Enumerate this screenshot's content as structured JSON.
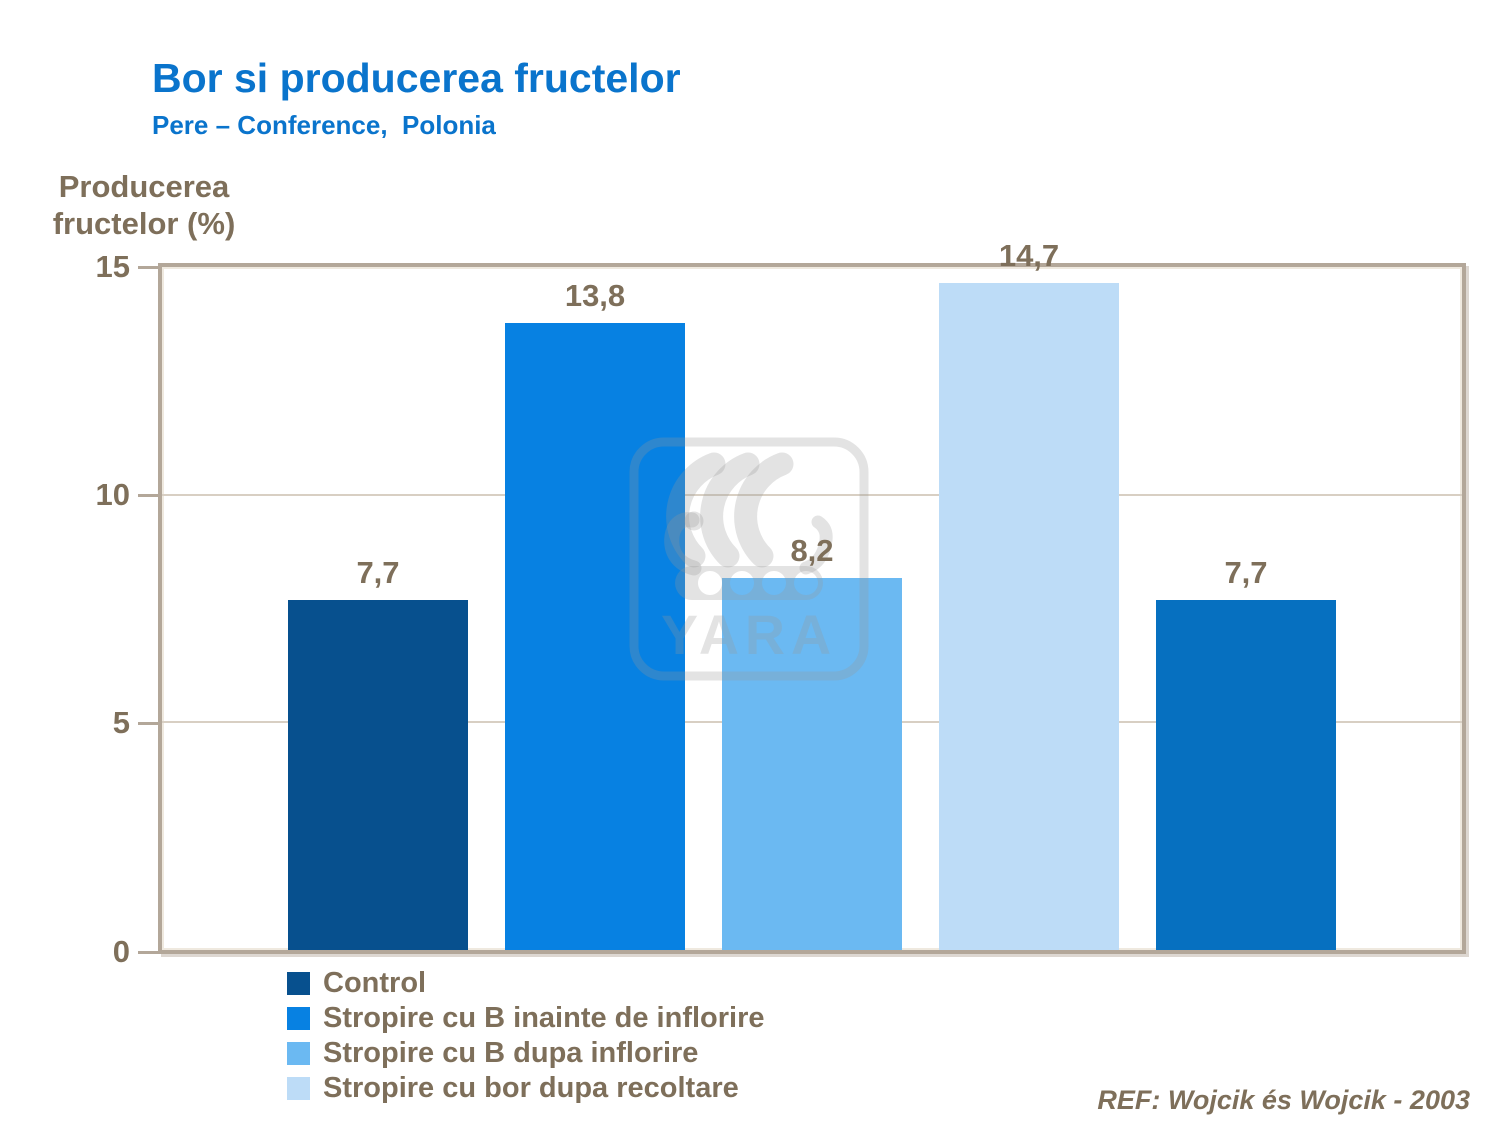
{
  "slide": {
    "title": "Bor si producerea fructelor",
    "subtitle": "Pere – Conference,  Polonia",
    "reference": "REF: Wojcik és Wojcik - 2003",
    "watermark_text": "YARA"
  },
  "axis": {
    "y_title_line1": "Producerea",
    "y_title_line2": "fructelor (%)",
    "tick_labels": [
      "15",
      "10",
      "5",
      "0"
    ]
  },
  "chart_data": {
    "type": "bar",
    "title": "Bor si producerea fructelor",
    "subtitle": "Pere – Conference, Polonia",
    "ylabel": "Producerea fructelor (%)",
    "ylim": [
      0,
      15
    ],
    "yticks": [
      0,
      5,
      10,
      15
    ],
    "grid": "horizontal-light",
    "legend_position": "bottom-left",
    "bars": [
      {
        "series": "Control",
        "value": 7.7,
        "label": "7,7",
        "color": "#07508e"
      },
      {
        "series": "Stropire cu B inainte de inflorire",
        "value": 13.8,
        "label": "13,8",
        "color": "#0781e2"
      },
      {
        "series": "Stropire cu B dupa inflorire",
        "value": 8.2,
        "label": "8,2",
        "color": "#6bb9f2"
      },
      {
        "series": "Stropire cu bor dupa recoltare",
        "value": 14.7,
        "label": "14,7",
        "color": "#bddcf7"
      },
      {
        "series": null,
        "value": 7.7,
        "label": "7,7",
        "color": "#0670c0"
      }
    ]
  },
  "legend": {
    "items": [
      {
        "label": "Control",
        "color": "#07508e"
      },
      {
        "label": "Stropire cu B inainte de inflorire",
        "color": "#0781e2"
      },
      {
        "label": "Stropire cu B dupa inflorire",
        "color": "#6bb9f2"
      },
      {
        "label": "Stropire cu bor dupa recoltare",
        "color": "#bddcf7"
      }
    ]
  },
  "colors": {
    "title_blue": "#0a74cc",
    "text_brown": "#7e6f5a",
    "axis_taupe": "#b3a799",
    "gridline": "#d8cfc3",
    "background": "#ffffff",
    "watermark_gray": "#e6e6e6"
  }
}
